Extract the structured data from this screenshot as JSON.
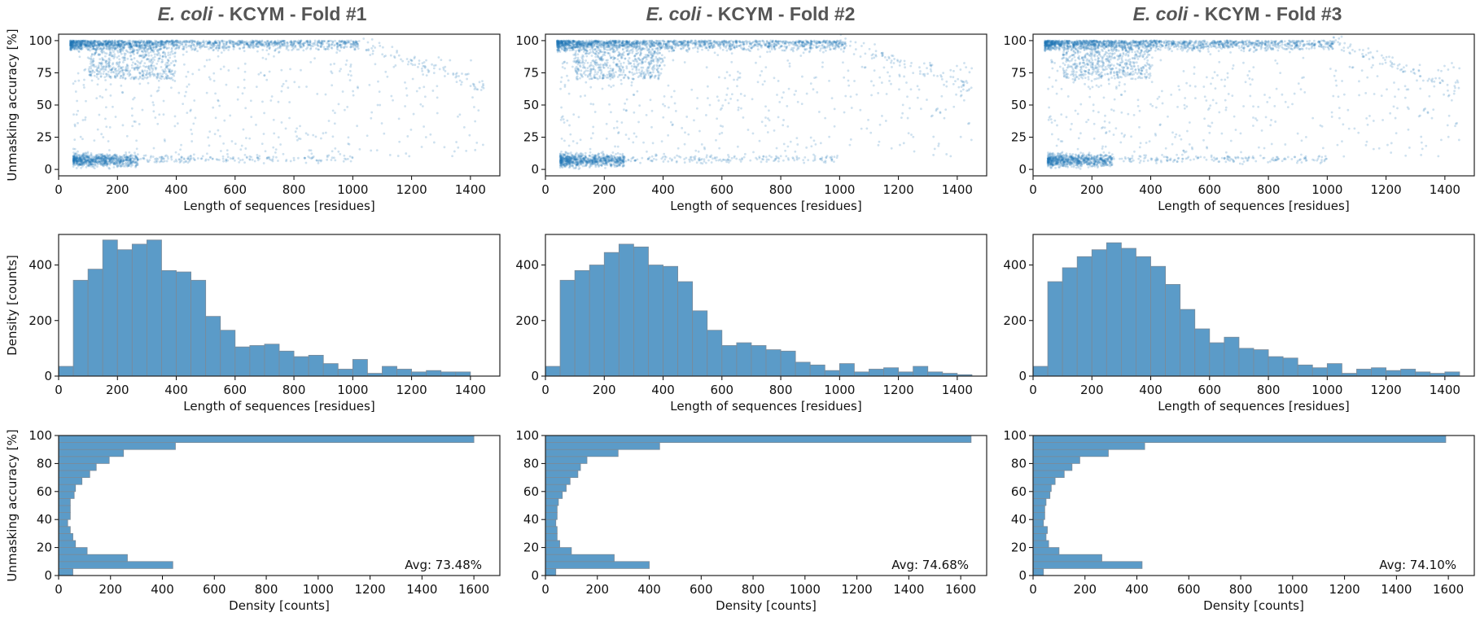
{
  "colors": {
    "scatter": "#1f77b4",
    "bar_fill": "#5b9bc8",
    "bar_edge": "#7a8a99",
    "title": "#555555"
  },
  "panels": [
    {
      "organism": "E. coli",
      "title_rest": " - KCYM - Fold #1",
      "avg": "Avg: 73.48%"
    },
    {
      "organism": "E. coli",
      "title_rest": " - KCYM - Fold #2",
      "avg": "Avg: 74.68%"
    },
    {
      "organism": "E. coli",
      "title_rest": " - KCYM - Fold #3",
      "avg": "Avg: 74.10%"
    }
  ],
  "chart_data": [
    {
      "type": "scatter",
      "panel": "Fold #1",
      "xlabel": "Length of sequences [residues]",
      "ylabel": "Unmasking accuracy [%]",
      "xlim": [
        0,
        1500
      ],
      "ylim": [
        -5,
        105
      ],
      "xticks": [
        0,
        200,
        400,
        600,
        800,
        1000,
        1200,
        1400
      ],
      "yticks": [
        0,
        25,
        50,
        75,
        100
      ],
      "description": "Dense cloud of points near 95-100% accuracy for lengths 50-1000, a second cluster near 5-10% accuracy for lengths 50-200, sparse points in between; tail to 1500"
    },
    {
      "type": "scatter",
      "panel": "Fold #2",
      "xlabel": "Length of sequences [residues]",
      "ylabel": "",
      "xlim": [
        0,
        1500
      ],
      "ylim": [
        -5,
        105
      ],
      "xticks": [
        0,
        200,
        400,
        600,
        800,
        1000,
        1200,
        1400
      ],
      "yticks": [
        0,
        25,
        50,
        75,
        100
      ],
      "description": "Dense cloud near 95-100% accuracy, cluster near 5-10% at short lengths"
    },
    {
      "type": "scatter",
      "panel": "Fold #3",
      "xlabel": "Length of sequences [residues]",
      "ylabel": "",
      "xlim": [
        0,
        1500
      ],
      "ylim": [
        -5,
        105
      ],
      "xticks": [
        0,
        200,
        400,
        600,
        800,
        1000,
        1200,
        1400
      ],
      "yticks": [
        0,
        25,
        50,
        75,
        100
      ],
      "description": "Dense cloud near 95-100% accuracy, cluster near 5-10% at short lengths"
    },
    {
      "type": "bar",
      "panel": "Fold #1",
      "xlabel": "Length of sequences [residues]",
      "ylabel": "Density [counts]",
      "xlim": [
        0,
        1500
      ],
      "ylim": [
        0,
        510
      ],
      "xticks": [
        0,
        200,
        400,
        600,
        800,
        1000,
        1200,
        1400
      ],
      "yticks": [
        0,
        200,
        400
      ],
      "bin_start": 0,
      "bin_width": 50,
      "values": [
        35,
        345,
        385,
        490,
        455,
        475,
        490,
        380,
        375,
        345,
        215,
        165,
        105,
        110,
        115,
        90,
        70,
        75,
        45,
        25,
        60,
        10,
        35,
        25,
        15,
        20,
        15,
        15
      ]
    },
    {
      "type": "bar",
      "panel": "Fold #2",
      "xlabel": "Length of sequences [residues]",
      "ylabel": "",
      "xlim": [
        0,
        1500
      ],
      "ylim": [
        0,
        510
      ],
      "xticks": [
        0,
        200,
        400,
        600,
        800,
        1000,
        1200,
        1400
      ],
      "yticks": [
        0,
        200,
        400
      ],
      "bin_start": 0,
      "bin_width": 50,
      "values": [
        35,
        345,
        380,
        400,
        445,
        475,
        465,
        400,
        395,
        340,
        235,
        165,
        110,
        120,
        110,
        95,
        90,
        50,
        40,
        20,
        45,
        15,
        25,
        30,
        15,
        35,
        15,
        10,
        5
      ]
    },
    {
      "type": "bar",
      "panel": "Fold #3",
      "xlabel": "Length of sequences [residues]",
      "ylabel": "",
      "xlim": [
        0,
        1500
      ],
      "ylim": [
        0,
        510
      ],
      "xticks": [
        0,
        200,
        400,
        600,
        800,
        1000,
        1200,
        1400
      ],
      "yticks": [
        0,
        200,
        400
      ],
      "bin_start": 0,
      "bin_width": 50,
      "values": [
        35,
        340,
        390,
        430,
        455,
        480,
        460,
        430,
        395,
        330,
        240,
        170,
        120,
        140,
        100,
        95,
        70,
        65,
        40,
        30,
        45,
        10,
        25,
        30,
        20,
        25,
        15,
        10,
        15
      ]
    },
    {
      "type": "bar",
      "orientation": "horizontal",
      "panel": "Fold #1",
      "xlabel": "Density [counts]",
      "ylabel": "Unmasking accuracy [%]",
      "xlim": [
        0,
        1700
      ],
      "ylim": [
        0,
        100
      ],
      "xticks": [
        0,
        200,
        400,
        600,
        800,
        1000,
        1200,
        1400,
        1600
      ],
      "yticks": [
        0,
        20,
        40,
        60,
        80,
        100
      ],
      "bin_start": 0,
      "bin_width": 5,
      "values": [
        55,
        440,
        265,
        110,
        65,
        55,
        45,
        35,
        45,
        45,
        45,
        60,
        65,
        90,
        120,
        145,
        195,
        250,
        450,
        1600
      ],
      "annotation": "Avg: 73.48%"
    },
    {
      "type": "bar",
      "orientation": "horizontal",
      "panel": "Fold #2",
      "xlabel": "Density [counts]",
      "ylabel": "",
      "xlim": [
        0,
        1700
      ],
      "ylim": [
        0,
        100
      ],
      "xticks": [
        0,
        200,
        400,
        600,
        800,
        1000,
        1200,
        1400,
        1600
      ],
      "yticks": [
        0,
        20,
        40,
        60,
        80,
        100
      ],
      "bin_start": 0,
      "bin_width": 5,
      "values": [
        40,
        400,
        265,
        100,
        55,
        45,
        45,
        40,
        45,
        45,
        50,
        65,
        80,
        95,
        125,
        135,
        160,
        280,
        440,
        1640
      ],
      "annotation": "Avg: 74.68%"
    },
    {
      "type": "bar",
      "orientation": "horizontal",
      "panel": "Fold #3",
      "xlabel": "Density [counts]",
      "ylabel": "",
      "xlim": [
        0,
        1700
      ],
      "ylim": [
        0,
        100
      ],
      "xticks": [
        0,
        200,
        400,
        600,
        800,
        1000,
        1200,
        1400,
        1600
      ],
      "yticks": [
        0,
        20,
        40,
        60,
        80,
        100
      ],
      "bin_start": 0,
      "bin_width": 5,
      "values": [
        40,
        420,
        265,
        100,
        60,
        50,
        55,
        40,
        45,
        45,
        50,
        65,
        70,
        85,
        120,
        150,
        180,
        290,
        430,
        1590
      ],
      "annotation": "Avg: 74.10%"
    }
  ]
}
